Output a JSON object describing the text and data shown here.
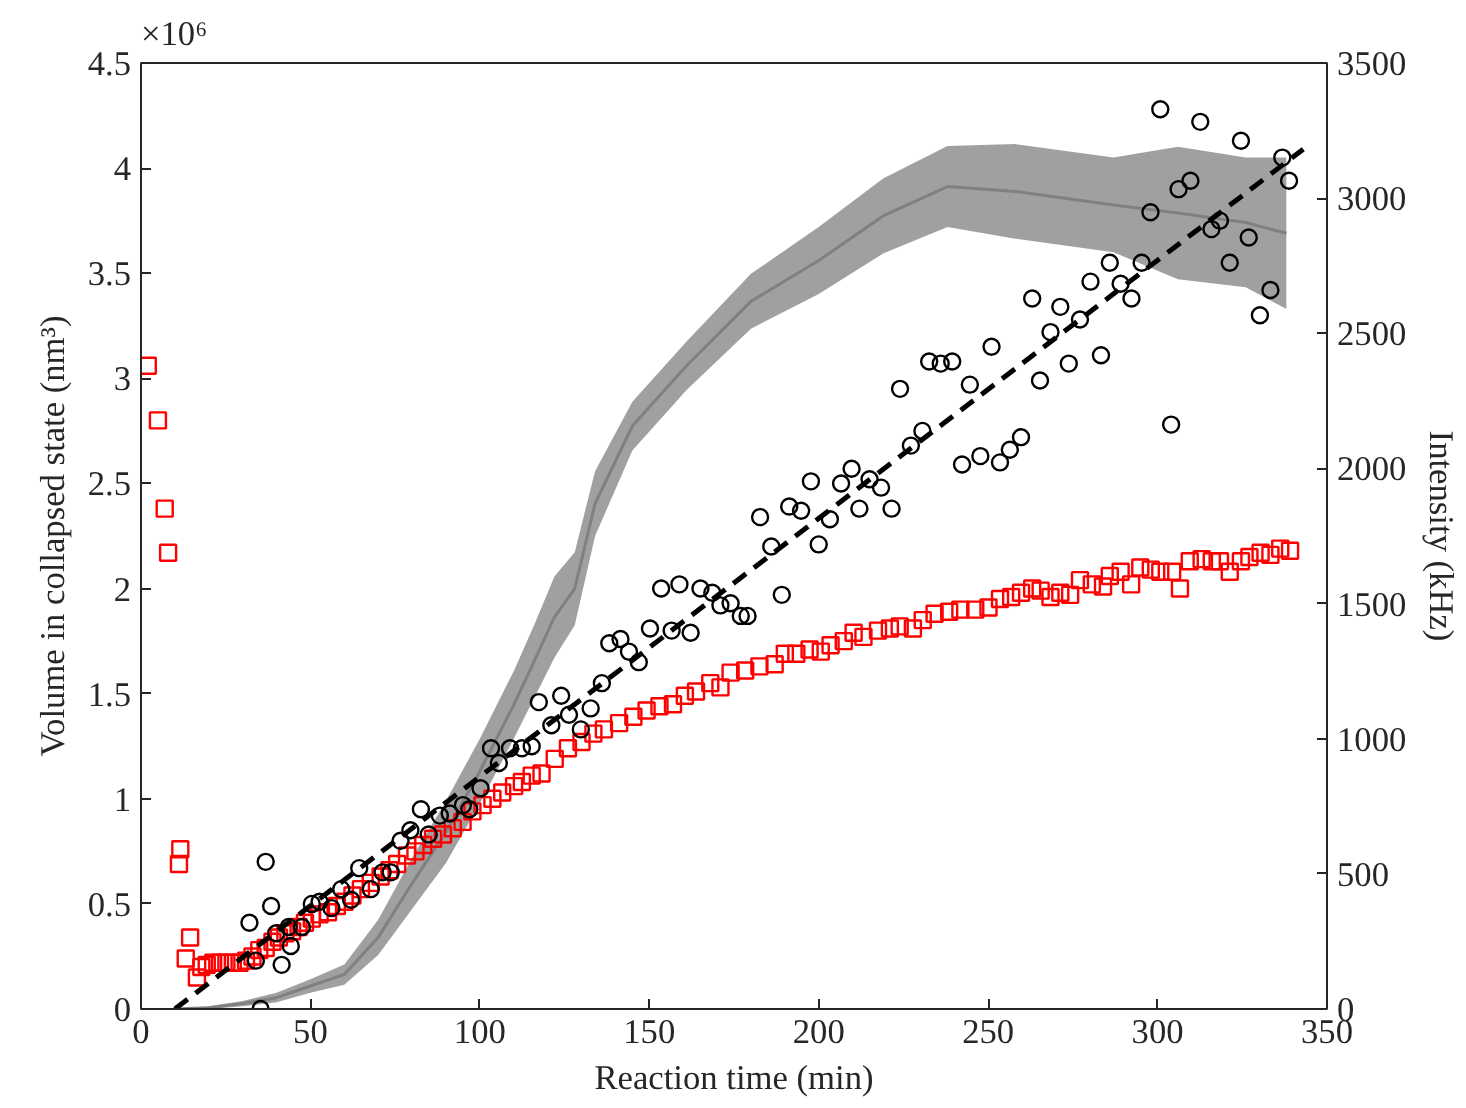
{
  "chart_data": {
    "type": "scatter",
    "xlabel": "Reaction time (min)",
    "ylabel": "Volume in collapsed state (nm³)",
    "y2label": "Intensity (kHz)",
    "annotations": [
      "×10⁶"
    ],
    "xlim": [
      0,
      350
    ],
    "xticks": [
      0,
      50,
      100,
      150,
      200,
      250,
      300,
      350
    ],
    "ylim": [
      0,
      4.5
    ],
    "yticks": [
      0,
      0.5,
      1,
      1.5,
      2,
      2.5,
      3,
      3.5,
      4,
      4.5
    ],
    "y2lim": [
      0,
      3500
    ],
    "y2ticks": [
      0,
      500,
      1000,
      1500,
      2000,
      2500,
      3000,
      3500
    ],
    "grid": false,
    "series": [
      {
        "type": "line",
        "axis": "y2",
        "color": "#808080",
        "x": [
          10,
          20,
          30,
          40,
          50,
          60,
          70,
          80,
          90,
          100,
          110,
          116,
          122,
          128,
          134,
          145,
          161,
          180,
          200,
          219,
          238,
          258,
          287,
          306,
          326,
          338
        ],
        "values": [
          0,
          5,
          20,
          42,
          85,
          128,
          265,
          465,
          655,
          880,
          1125,
          1285,
          1450,
          1555,
          1870,
          2157,
          2380,
          2618,
          2769,
          2934,
          3043,
          3025,
          2975,
          2945,
          2910,
          2870
        ],
        "lower": [
          0,
          0,
          10,
          25,
          60,
          90,
          200,
          370,
          540,
          760,
          1000,
          1150,
          1300,
          1420,
          1750,
          2066,
          2290,
          2517,
          2645,
          2795,
          2893,
          2850,
          2800,
          2700,
          2670,
          2590
        ],
        "upper": [
          0,
          10,
          30,
          60,
          110,
          165,
          330,
          560,
          770,
          1000,
          1250,
          1420,
          1600,
          1690,
          1990,
          2247,
          2470,
          2720,
          2893,
          3073,
          3193,
          3200,
          3150,
          3190,
          3150,
          3150
        ]
      },
      {
        "marker": "square",
        "color": "#ff0000",
        "x": [
          2,
          5,
          7,
          8,
          11.2,
          11.6,
          13.2,
          14.5,
          16.5,
          17.8,
          19.4,
          21.3,
          23.3,
          25.2,
          27.1,
          29.1,
          31,
          32.9,
          34.9,
          36.8,
          38.8,
          40.7,
          42.6,
          44.6,
          46.5,
          48.4,
          50.4,
          52.7,
          55.2,
          57.8,
          60.1,
          62.4,
          64.9,
          67.8,
          70.7,
          73.3,
          75.6,
          78.5,
          81,
          83.3,
          86.2,
          89.1,
          92,
          94.9,
          97.8,
          100.8,
          103.7,
          106.6,
          110.1,
          112.4,
          115.3,
          118.2,
          122.1,
          126,
          130,
          133.5,
          136.6,
          141.1,
          145.3,
          149.2,
          153,
          157,
          160.5,
          163.8,
          168,
          171,
          174,
          178.3,
          182.5,
          187,
          190,
          193.4,
          197.3,
          200.6,
          203.5,
          207.4,
          210.3,
          213.2,
          217.5,
          221,
          223.9,
          227.8,
          230.7,
          234.2,
          238.5,
          241.8,
          246.2,
          250.1,
          253.5,
          256.8,
          259.7,
          263,
          265.5,
          268.4,
          271.3,
          274.2,
          277.1,
          280.6,
          283.9,
          285.9,
          289.1,
          292.2,
          294.9,
          298,
          300.8,
          304.3,
          306.6,
          309.5,
          313,
          316,
          318.4,
          321.3,
          324.6,
          327.1,
          330.4,
          333.3,
          336.2,
          339.1
        ],
        "values": [
          3.06,
          2.8,
          2.38,
          2.17,
          0.69,
          0.76,
          0.24,
          0.34,
          0.15,
          0.2,
          0.21,
          0.22,
          0.22,
          0.22,
          0.22,
          0.22,
          0.23,
          0.25,
          0.28,
          0.29,
          0.32,
          0.34,
          0.36,
          0.37,
          0.39,
          0.41,
          0.43,
          0.45,
          0.46,
          0.49,
          0.51,
          0.54,
          0.57,
          0.6,
          0.63,
          0.66,
          0.69,
          0.73,
          0.75,
          0.78,
          0.81,
          0.83,
          0.86,
          0.89,
          0.94,
          0.97,
          1.0,
          1.03,
          1.06,
          1.08,
          1.11,
          1.12,
          1.19,
          1.24,
          1.27,
          1.31,
          1.33,
          1.36,
          1.39,
          1.42,
          1.44,
          1.45,
          1.49,
          1.51,
          1.55,
          1.53,
          1.6,
          1.61,
          1.63,
          1.64,
          1.69,
          1.69,
          1.71,
          1.7,
          1.73,
          1.75,
          1.79,
          1.77,
          1.8,
          1.81,
          1.82,
          1.81,
          1.85,
          1.88,
          1.89,
          1.9,
          1.9,
          1.91,
          1.95,
          1.96,
          1.98,
          2.0,
          1.99,
          1.96,
          1.98,
          1.97,
          2.04,
          2.02,
          2.01,
          2.06,
          2.08,
          2.02,
          2.1,
          2.09,
          2.08,
          2.08,
          2.0,
          2.13,
          2.14,
          2.13,
          2.13,
          2.08,
          2.13,
          2.15,
          2.17,
          2.16,
          2.19,
          2.18
        ]
      },
      {
        "marker": "circle",
        "color": "#000000",
        "x": [
          32,
          33.9,
          35.3,
          36.8,
          38.4,
          39.9,
          41.5,
          43.6,
          44.2,
          47.5,
          50.4,
          52.7,
          56.2,
          59.1,
          62,
          64.4,
          67.8,
          71.3,
          73.7,
          76.6,
          79.5,
          82.6,
          84.9,
          88.2,
          91.1,
          95,
          96.9,
          100.2,
          103.3,
          105.6,
          108.9,
          112.4,
          115.3,
          117.4,
          121.1,
          124,
          126.3,
          129.8,
          132.7,
          136,
          138.2,
          141.5,
          144,
          146.9,
          150.2,
          153.5,
          156.6,
          158.9,
          162.2,
          165.1,
          168.6,
          171,
          174,
          177,
          179,
          182.7,
          186,
          189.1,
          191.3,
          194.8,
          197.7,
          200,
          203.3,
          206.6,
          209.7,
          212,
          215,
          218.4,
          221.5,
          224,
          227.2,
          230.6,
          232.6,
          236,
          239.4,
          242.3,
          244.6,
          247.7,
          251,
          253.5,
          256.4,
          259.7,
          263,
          265.3,
          268.4,
          271.3,
          273.8,
          277.1,
          280.2,
          283.3,
          285.9,
          289.1,
          292.3,
          295.3,
          297.9,
          300.8,
          304,
          306.2,
          309.7,
          312.6,
          315.9,
          318.4,
          321.3,
          324.6,
          326.9,
          330.2,
          333.3,
          336.8,
          338.8
        ],
        "values": [
          0.41,
          0.23,
          0,
          0.7,
          0.49,
          0.36,
          0.21,
          0.39,
          0.3,
          0.39,
          0.5,
          0.51,
          0.48,
          0.57,
          0.52,
          0.67,
          0.57,
          0.65,
          0.65,
          0.8,
          0.85,
          0.95,
          0.83,
          0.92,
          0.93,
          0.97,
          0.95,
          1.05,
          1.24,
          1.17,
          1.24,
          1.24,
          1.25,
          1.46,
          1.35,
          1.49,
          1.4,
          1.33,
          1.43,
          1.55,
          1.74,
          1.76,
          1.7,
          1.65,
          1.81,
          2.0,
          1.8,
          2.02,
          1.79,
          2.0,
          1.98,
          1.92,
          1.93,
          1.87,
          1.87,
          2.34,
          2.2,
          1.97,
          2.39,
          2.37,
          2.51,
          2.21,
          2.33,
          2.5,
          2.57,
          2.38,
          2.52,
          2.48,
          2.38,
          2.95,
          2.68,
          2.75,
          3.08,
          3.07,
          3.08,
          2.59,
          2.97,
          2.63,
          3.15,
          2.6,
          2.66,
          2.72,
          3.38,
          2.99,
          3.22,
          3.34,
          3.07,
          3.28,
          3.46,
          3.11,
          3.55,
          3.45,
          3.38,
          3.55,
          3.79,
          4.28,
          2.78,
          3.9,
          3.94,
          4.22,
          3.71,
          3.75,
          3.55,
          4.13,
          3.67,
          3.3,
          3.42,
          4.05,
          3.94
        ]
      },
      {
        "type": "line",
        "line_style": "dashed",
        "color": "#000000",
        "x": [
          10,
          343
        ],
        "values": [
          0,
          4.09
        ]
      }
    ]
  }
}
